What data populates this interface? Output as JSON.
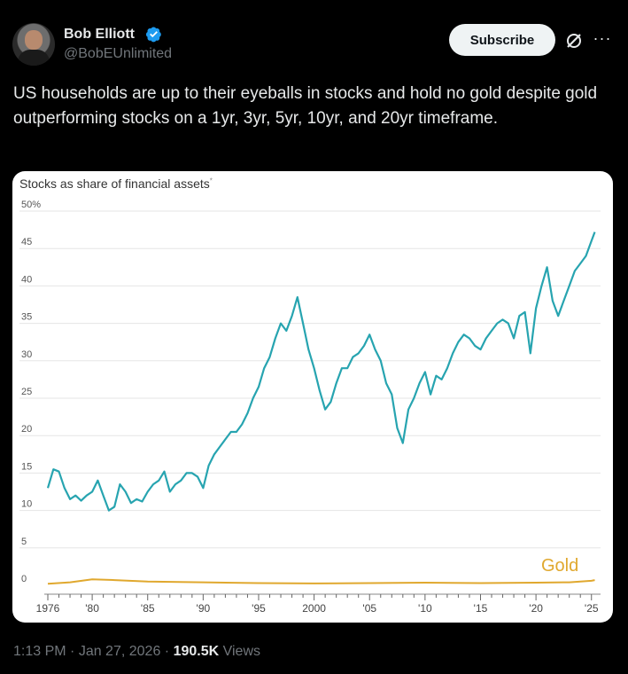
{
  "author": {
    "name": "Bob Elliott",
    "handle": "@BobEUnlimited"
  },
  "actions": {
    "subscribe_label": "Subscribe",
    "more_label": "···"
  },
  "tweet": {
    "text": "US households are up to their eyeballs in stocks and hold no gold despite gold outperforming stocks on a 1yr, 3yr, 5yr, 10yr, and 20yr timeframe."
  },
  "footer": {
    "time": "1:13 PM",
    "sep1": " · ",
    "date": "Jan 27, 2026",
    "sep2": " · ",
    "views_count": "190.5K",
    "views_label": " Views"
  },
  "colors": {
    "stocks_line": "#27a4b0",
    "gold_line": "#e0a82e",
    "gold_label": "#e0a82e",
    "grid": "#e5e5e5"
  },
  "chart_data": {
    "type": "line",
    "title": "Stocks as share of financial assets",
    "title_mark": "*",
    "y_ticks": [
      "50%",
      "45",
      "40",
      "35",
      "30",
      "25",
      "20",
      "15",
      "10",
      "5",
      "0"
    ],
    "y_tick_values": [
      50,
      45,
      40,
      35,
      30,
      25,
      20,
      15,
      10,
      5,
      0
    ],
    "x_ticks": [
      "1976",
      "'80",
      "'85",
      "'90",
      "'95",
      "2000",
      "'05",
      "'10",
      "'15",
      "'20",
      "'25"
    ],
    "x_tick_values": [
      1976,
      1980,
      1985,
      1990,
      1995,
      2000,
      2005,
      2010,
      2015,
      2020,
      2025
    ],
    "ylim": [
      0,
      50
    ],
    "xlim": [
      1976,
      2025.5
    ],
    "grid": true,
    "series": [
      {
        "name": "",
        "x": [
          1976,
          1976.5,
          1977,
          1977.5,
          1978,
          1978.5,
          1979,
          1979.5,
          1980,
          1980.5,
          1981,
          1981.5,
          1982,
          1982.5,
          1983,
          1983.5,
          1984,
          1984.5,
          1985,
          1985.5,
          1986,
          1986.5,
          1987,
          1987.5,
          1988,
          1988.5,
          1989,
          1989.5,
          1990,
          1990.5,
          1991,
          1991.5,
          1992,
          1992.5,
          1993,
          1993.5,
          1994,
          1994.5,
          1995,
          1995.5,
          1996,
          1996.5,
          1997,
          1997.5,
          1998,
          1998.5,
          1999,
          1999.5,
          2000,
          2000.5,
          2001,
          2001.5,
          2002,
          2002.5,
          2003,
          2003.5,
          2004,
          2004.5,
          2005,
          2005.5,
          2006,
          2006.5,
          2007,
          2007.5,
          2008,
          2008.5,
          2009,
          2009.5,
          2010,
          2010.5,
          2011,
          2011.5,
          2012,
          2012.5,
          2013,
          2013.5,
          2014,
          2014.5,
          2015,
          2015.5,
          2016,
          2016.5,
          2017,
          2017.5,
          2018,
          2018.5,
          2019,
          2019.5,
          2020,
          2020.5,
          2021,
          2021.5,
          2022,
          2022.5,
          2023,
          2023.5,
          2024,
          2024.5,
          2025,
          2025.3
        ],
        "values": [
          13,
          15.5,
          15.2,
          13,
          11.5,
          12,
          11.3,
          12,
          12.5,
          14,
          12,
          10,
          10.5,
          13.5,
          12.5,
          11,
          11.5,
          11.2,
          12.5,
          13.5,
          14,
          15.2,
          12.5,
          13.5,
          14,
          15,
          15,
          14.5,
          13,
          16,
          17.5,
          18.5,
          19.5,
          20.5,
          20.5,
          21.5,
          23,
          25,
          26.5,
          29,
          30.5,
          33,
          35,
          34,
          36,
          38.5,
          35,
          31.5,
          29,
          26,
          23.5,
          24.5,
          27,
          29,
          29,
          30.5,
          31,
          32,
          33.5,
          31.5,
          30,
          27,
          25.5,
          21,
          19,
          23.5,
          25,
          27,
          28.5,
          25.5,
          28,
          27.5,
          29,
          31,
          32.5,
          33.5,
          33,
          32,
          31.5,
          33,
          34,
          35,
          35.5,
          35,
          33,
          36,
          36.5,
          31,
          37,
          40,
          42.5,
          38,
          36,
          38,
          40,
          42,
          43,
          44,
          46,
          47.2
        ]
      },
      {
        "name": "Gold",
        "x": [
          1976,
          1978,
          1980,
          1982,
          1985,
          1990,
          1995,
          2000,
          2005,
          2010,
          2015,
          2020,
          2023,
          2025,
          2025.3
        ],
        "values": [
          0.2,
          0.4,
          0.8,
          0.7,
          0.5,
          0.4,
          0.3,
          0.25,
          0.3,
          0.35,
          0.3,
          0.35,
          0.4,
          0.6,
          0.7
        ]
      }
    ]
  }
}
